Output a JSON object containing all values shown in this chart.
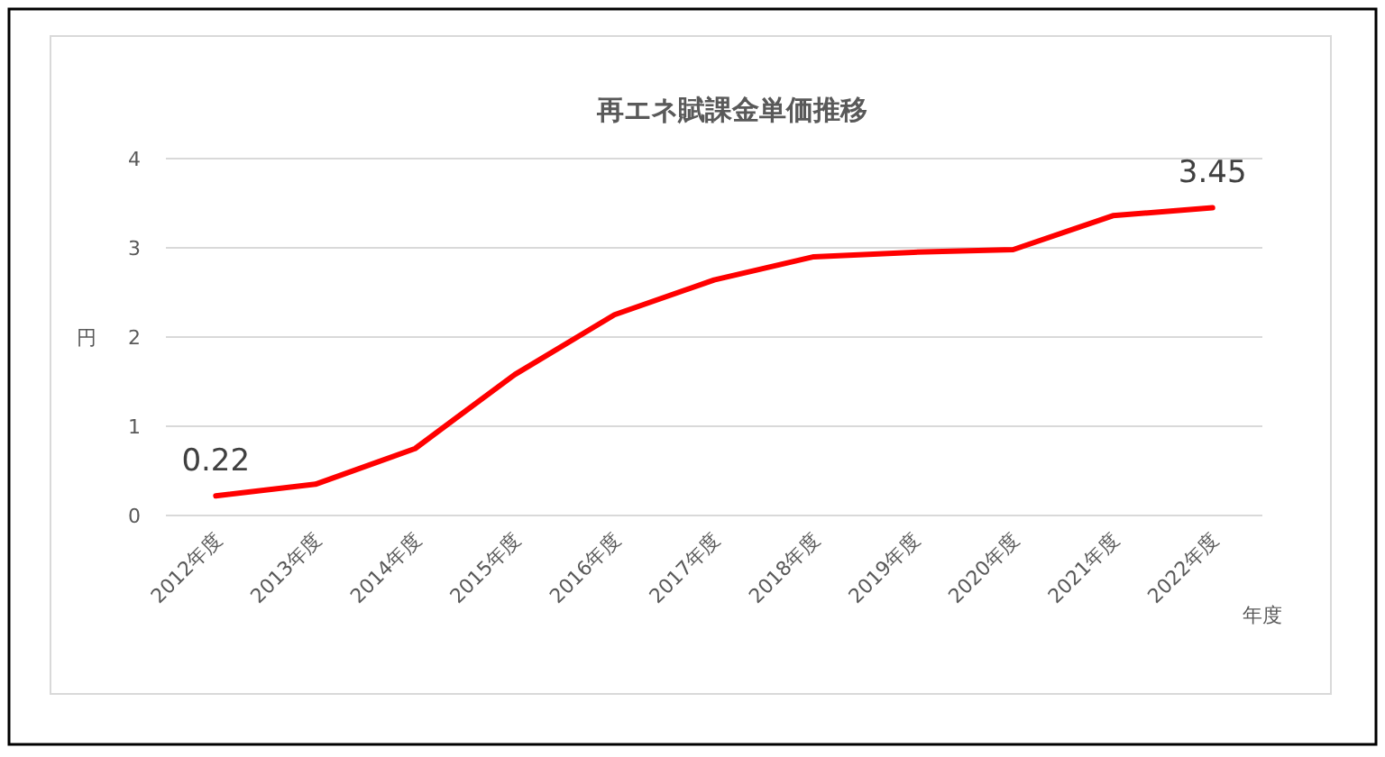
{
  "chart_data": {
    "type": "line",
    "title": "再エネ賦課金単価推移",
    "ylabel": "円",
    "xlabel": "年度",
    "categories": [
      "2012年度",
      "2013年度",
      "2014年度",
      "2015年度",
      "2016年度",
      "2017年度",
      "2018年度",
      "2019年度",
      "2020年度",
      "2021年度",
      "2022年度"
    ],
    "series": [
      {
        "color": "#ff0000",
        "values": [
          0.22,
          0.35,
          0.75,
          1.58,
          2.25,
          2.64,
          2.9,
          2.95,
          2.98,
          3.36,
          3.45
        ],
        "value_labels": [
          "0.22",
          null,
          null,
          null,
          null,
          null,
          null,
          null,
          null,
          null,
          "3.45"
        ]
      }
    ],
    "ylim": [
      0,
      4
    ],
    "yticks": [
      0,
      1,
      2,
      3,
      4
    ],
    "grid": "y",
    "marker": "none",
    "line_style": "solid"
  }
}
